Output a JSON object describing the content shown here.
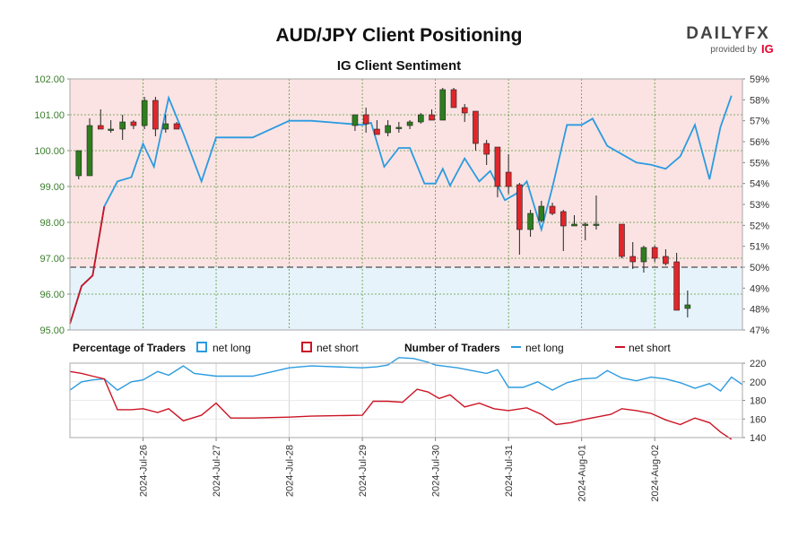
{
  "header": {
    "title": "AUD/JPY Client Positioning",
    "subtitle": "IG Client Sentiment"
  },
  "brand": {
    "logo": "DAILYFX",
    "provided_by": "provided by",
    "ig": "IG"
  },
  "legend": {
    "pct_heading": "Percentage of Traders",
    "count_heading": "Number of Traders",
    "net_long": "net long",
    "net_short": "net short"
  },
  "colors": {
    "net_long": "#2b9be0",
    "net_short": "#cc1425",
    "long_fill": "#e6f3fb",
    "short_fill": "#fbe3e3",
    "candle_up": "#2e7d1e",
    "candle_down": "#e0262c",
    "price_axis": "#3a7d2a"
  },
  "chart_data": [
    {
      "type": "candlestick",
      "title": "AUD/JPY Client Positioning",
      "subtitle": "IG Client Sentiment",
      "price_ylim": [
        95.0,
        102.0
      ],
      "price_ticks": [
        "95.00",
        "96.00",
        "97.00",
        "98.00",
        "99.00",
        "100.00",
        "101.00",
        "102.00"
      ],
      "pct_ylim": [
        47,
        59
      ],
      "pct_ticks": [
        "47%",
        "48%",
        "49%",
        "50%",
        "51%",
        "52%",
        "53%",
        "54%",
        "55%",
        "56%",
        "57%",
        "58%",
        "59%"
      ],
      "reference_line_pct": 50,
      "grid": true,
      "x_dates": [
        "2024-Jul-26",
        "2024-Jul-27",
        "2024-Jul-28",
        "2024-Jul-29",
        "2024-Jul-30",
        "2024-Jul-31",
        "2024-Aug-01",
        "2024-Aug-02"
      ],
      "candles": [
        {
          "t": 25.12,
          "o": 99.3,
          "h": 100.0,
          "l": 99.2,
          "c": 100.0
        },
        {
          "t": 25.27,
          "o": 99.3,
          "h": 100.9,
          "l": 99.3,
          "c": 100.7
        },
        {
          "t": 25.42,
          "o": 100.7,
          "h": 101.15,
          "l": 100.6,
          "c": 100.6
        },
        {
          "t": 25.56,
          "o": 100.6,
          "h": 100.85,
          "l": 100.5,
          "c": 100.6
        },
        {
          "t": 25.72,
          "o": 100.6,
          "h": 101.0,
          "l": 100.3,
          "c": 100.8
        },
        {
          "t": 25.87,
          "o": 100.8,
          "h": 100.85,
          "l": 100.6,
          "c": 100.7
        },
        {
          "t": 26.02,
          "o": 100.7,
          "h": 101.5,
          "l": 100.6,
          "c": 101.4
        },
        {
          "t": 26.17,
          "o": 101.4,
          "h": 101.5,
          "l": 100.4,
          "c": 100.6
        },
        {
          "t": 26.31,
          "o": 100.6,
          "h": 101.0,
          "l": 100.5,
          "c": 100.75
        },
        {
          "t": 26.46,
          "o": 100.75,
          "h": 100.8,
          "l": 100.6,
          "c": 100.6
        },
        {
          "t": 28.9,
          "o": 100.7,
          "h": 101.0,
          "l": 100.55,
          "c": 101.0
        },
        {
          "t": 29.05,
          "o": 101.0,
          "h": 101.2,
          "l": 100.5,
          "c": 100.75
        },
        {
          "t": 29.2,
          "o": 100.6,
          "h": 100.85,
          "l": 100.45,
          "c": 100.45
        },
        {
          "t": 29.35,
          "o": 100.5,
          "h": 100.85,
          "l": 100.4,
          "c": 100.7
        },
        {
          "t": 29.5,
          "o": 100.65,
          "h": 100.8,
          "l": 100.5,
          "c": 100.65
        },
        {
          "t": 29.65,
          "o": 100.7,
          "h": 100.85,
          "l": 100.6,
          "c": 100.8
        },
        {
          "t": 29.8,
          "o": 100.8,
          "h": 101.05,
          "l": 100.75,
          "c": 101.0
        },
        {
          "t": 29.95,
          "o": 101.0,
          "h": 101.15,
          "l": 100.85,
          "c": 100.85
        },
        {
          "t": 30.1,
          "o": 100.85,
          "h": 101.75,
          "l": 100.85,
          "c": 101.7
        },
        {
          "t": 30.25,
          "o": 101.7,
          "h": 101.75,
          "l": 101.2,
          "c": 101.2
        },
        {
          "t": 30.4,
          "o": 101.2,
          "h": 101.3,
          "l": 100.8,
          "c": 101.05
        },
        {
          "t": 30.55,
          "o": 101.1,
          "h": 101.1,
          "l": 100.0,
          "c": 100.2
        },
        {
          "t": 30.7,
          "o": 100.2,
          "h": 100.3,
          "l": 99.6,
          "c": 99.9
        },
        {
          "t": 30.85,
          "o": 100.1,
          "h": 100.1,
          "l": 98.7,
          "c": 99.0
        },
        {
          "t": 31.0,
          "o": 99.4,
          "h": 99.9,
          "l": 98.8,
          "c": 99.0
        },
        {
          "t": 31.15,
          "o": 99.05,
          "h": 99.1,
          "l": 97.1,
          "c": 97.8
        },
        {
          "t": 31.3,
          "o": 97.8,
          "h": 98.35,
          "l": 97.6,
          "c": 98.25
        },
        {
          "t": 31.45,
          "o": 98.05,
          "h": 98.6,
          "l": 98.0,
          "c": 98.45
        },
        {
          "t": 31.6,
          "o": 98.45,
          "h": 98.55,
          "l": 98.2,
          "c": 98.25
        },
        {
          "t": 31.75,
          "o": 98.3,
          "h": 98.35,
          "l": 97.2,
          "c": 97.9
        },
        {
          "t": 31.9,
          "o": 97.9,
          "h": 98.2,
          "l": 97.9,
          "c": 97.95
        },
        {
          "t": 32.05,
          "o": 97.95,
          "h": 98.0,
          "l": 97.5,
          "c": 97.95
        },
        {
          "t": 32.2,
          "o": 97.95,
          "h": 98.75,
          "l": 97.8,
          "c": 97.95
        },
        {
          "t": 32.55,
          "o": 97.95,
          "h": 97.95,
          "l": 97.0,
          "c": 97.05
        },
        {
          "t": 32.7,
          "o": 97.05,
          "h": 97.45,
          "l": 96.7,
          "c": 96.9
        },
        {
          "t": 32.85,
          "o": 96.9,
          "h": 97.35,
          "l": 96.6,
          "c": 97.3
        },
        {
          "t": 33.0,
          "o": 97.3,
          "h": 97.35,
          "l": 96.9,
          "c": 97.0
        },
        {
          "t": 33.15,
          "o": 97.05,
          "h": 97.25,
          "l": 96.8,
          "c": 96.85
        },
        {
          "t": 33.3,
          "o": 96.9,
          "h": 97.15,
          "l": 95.6,
          "c": 95.55
        },
        {
          "t": 33.45,
          "o": 95.6,
          "h": 96.1,
          "l": 95.35,
          "c": 95.7
        }
      ],
      "series": [
        {
          "name": "net long",
          "unit": "%",
          "points": [
            [
              25.0,
              47.3
            ],
            [
              25.16,
              49.1
            ],
            [
              25.31,
              49.6
            ],
            [
              25.47,
              52.9
            ],
            [
              25.65,
              54.1
            ],
            [
              25.84,
              54.3
            ],
            [
              26.0,
              55.9
            ],
            [
              26.15,
              54.8
            ],
            [
              26.35,
              58.1
            ],
            [
              26.55,
              56.4
            ],
            [
              26.8,
              54.1
            ],
            [
              27.0,
              56.2
            ],
            [
              27.5,
              56.2
            ],
            [
              28.0,
              57.0
            ],
            [
              28.3,
              57.0
            ],
            [
              29.0,
              56.8
            ],
            [
              29.12,
              56.9
            ],
            [
              29.3,
              54.8
            ],
            [
              29.5,
              55.7
            ],
            [
              29.65,
              55.7
            ],
            [
              29.85,
              54.0
            ],
            [
              30.0,
              54.0
            ],
            [
              30.1,
              54.7
            ],
            [
              30.2,
              53.9
            ],
            [
              30.4,
              55.2
            ],
            [
              30.6,
              54.1
            ],
            [
              30.75,
              54.6
            ],
            [
              30.95,
              53.2
            ],
            [
              31.1,
              53.5
            ],
            [
              31.25,
              54.1
            ],
            [
              31.45,
              51.8
            ],
            [
              31.6,
              53.8
            ],
            [
              31.8,
              56.8
            ],
            [
              32.0,
              56.8
            ],
            [
              32.15,
              57.1
            ],
            [
              32.35,
              55.8
            ],
            [
              32.6,
              55.3
            ],
            [
              32.75,
              55.0
            ],
            [
              32.95,
              54.9
            ],
            [
              33.15,
              54.7
            ],
            [
              33.35,
              55.3
            ],
            [
              33.55,
              56.8
            ],
            [
              33.75,
              54.2
            ],
            [
              33.9,
              56.7
            ],
            [
              34.05,
              58.2
            ]
          ]
        },
        {
          "name": "net short",
          "unit": "%",
          "points": [
            [
              25.0,
              47.3
            ],
            [
              25.16,
              49.1
            ],
            [
              25.31,
              49.6
            ],
            [
              25.47,
              52.9
            ]
          ]
        }
      ]
    },
    {
      "type": "line",
      "title": "Number of Traders",
      "ylim": [
        140,
        220
      ],
      "y_ticks": [
        "140",
        "160",
        "180",
        "200",
        "220"
      ],
      "series": [
        {
          "name": "net long",
          "points": [
            [
              25.0,
              191
            ],
            [
              25.16,
              200
            ],
            [
              25.31,
              202
            ],
            [
              25.47,
              203
            ],
            [
              25.65,
              191
            ],
            [
              25.84,
              200
            ],
            [
              26.0,
              202
            ],
            [
              26.2,
              211
            ],
            [
              26.35,
              207
            ],
            [
              26.55,
              217
            ],
            [
              26.7,
              209
            ],
            [
              27.0,
              206
            ],
            [
              27.5,
              206
            ],
            [
              28.0,
              215
            ],
            [
              28.3,
              217
            ],
            [
              29.0,
              215
            ],
            [
              29.2,
              216
            ],
            [
              29.35,
              218
            ],
            [
              29.5,
              226
            ],
            [
              29.7,
              225
            ],
            [
              29.9,
              221
            ],
            [
              30.0,
              218
            ],
            [
              30.3,
              215
            ],
            [
              30.5,
              212
            ],
            [
              30.7,
              209
            ],
            [
              30.85,
              213
            ],
            [
              31.0,
              194
            ],
            [
              31.2,
              194
            ],
            [
              31.4,
              200
            ],
            [
              31.6,
              191
            ],
            [
              31.8,
              199
            ],
            [
              32.0,
              203
            ],
            [
              32.2,
              204
            ],
            [
              32.35,
              212
            ],
            [
              32.55,
              204
            ],
            [
              32.75,
              201
            ],
            [
              32.95,
              205
            ],
            [
              33.15,
              203
            ],
            [
              33.35,
              199
            ],
            [
              33.55,
              193
            ],
            [
              33.75,
              198
            ],
            [
              33.9,
              190
            ],
            [
              34.05,
              205
            ],
            [
              34.2,
              197
            ]
          ]
        },
        {
          "name": "net short",
          "points": [
            [
              25.0,
              211
            ],
            [
              25.16,
              209
            ],
            [
              25.31,
              206
            ],
            [
              25.47,
              203
            ],
            [
              25.65,
              170
            ],
            [
              25.84,
              170
            ],
            [
              26.0,
              171
            ],
            [
              26.2,
              167
            ],
            [
              26.35,
              171
            ],
            [
              26.55,
              158
            ],
            [
              26.8,
              164
            ],
            [
              27.0,
              177
            ],
            [
              27.2,
              161
            ],
            [
              27.5,
              161
            ],
            [
              28.0,
              162
            ],
            [
              28.3,
              163
            ],
            [
              29.0,
              164
            ],
            [
              29.15,
              179
            ],
            [
              29.35,
              179
            ],
            [
              29.55,
              178
            ],
            [
              29.75,
              192
            ],
            [
              29.9,
              189
            ],
            [
              30.05,
              182
            ],
            [
              30.2,
              186
            ],
            [
              30.4,
              173
            ],
            [
              30.6,
              177
            ],
            [
              30.8,
              171
            ],
            [
              31.0,
              169
            ],
            [
              31.25,
              172
            ],
            [
              31.45,
              165
            ],
            [
              31.65,
              154
            ],
            [
              31.85,
              156
            ],
            [
              32.0,
              159
            ],
            [
              32.2,
              162
            ],
            [
              32.4,
              165
            ],
            [
              32.55,
              171
            ],
            [
              32.75,
              169
            ],
            [
              32.95,
              166
            ],
            [
              33.15,
              159
            ],
            [
              33.35,
              154
            ],
            [
              33.55,
              161
            ],
            [
              33.75,
              156
            ],
            [
              33.9,
              146
            ],
            [
              34.05,
              138
            ]
          ]
        }
      ]
    }
  ]
}
